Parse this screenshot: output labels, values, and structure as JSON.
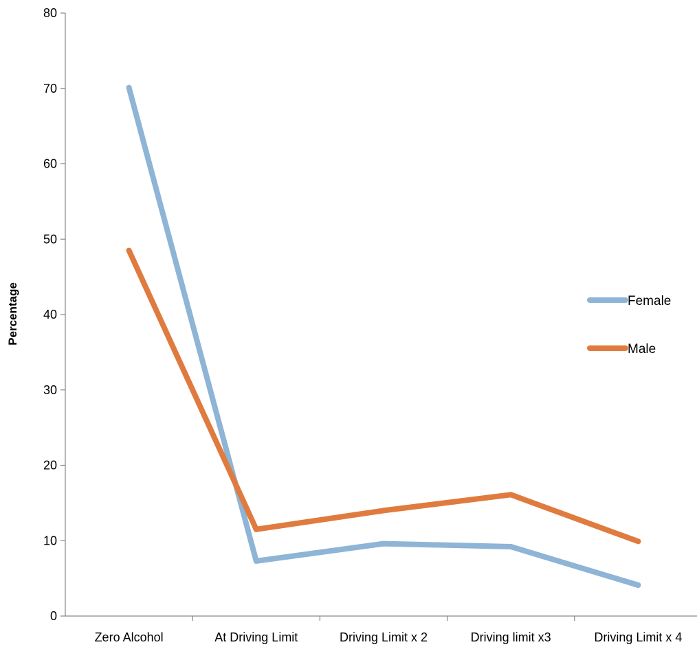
{
  "chart_data": {
    "type": "line",
    "title": "",
    "xlabel": "",
    "ylabel": "Percentage",
    "categories": [
      "Zero Alcohol",
      "At Driving Limit",
      "Driving Limit x 2",
      "Driving limit x3",
      "Driving Limit x 4"
    ],
    "ylim": [
      0,
      80
    ],
    "yticks": [
      0,
      10,
      20,
      30,
      40,
      50,
      60,
      70,
      80
    ],
    "grid": false,
    "legend_position": "right",
    "series": [
      {
        "name": "Female",
        "color": "#8EB4D6",
        "values": [
          70.1,
          7.3,
          9.6,
          9.2,
          4.1
        ]
      },
      {
        "name": "Male",
        "color": "#E07B3F",
        "values": [
          48.5,
          11.5,
          14.0,
          16.1,
          9.9
        ]
      }
    ]
  }
}
